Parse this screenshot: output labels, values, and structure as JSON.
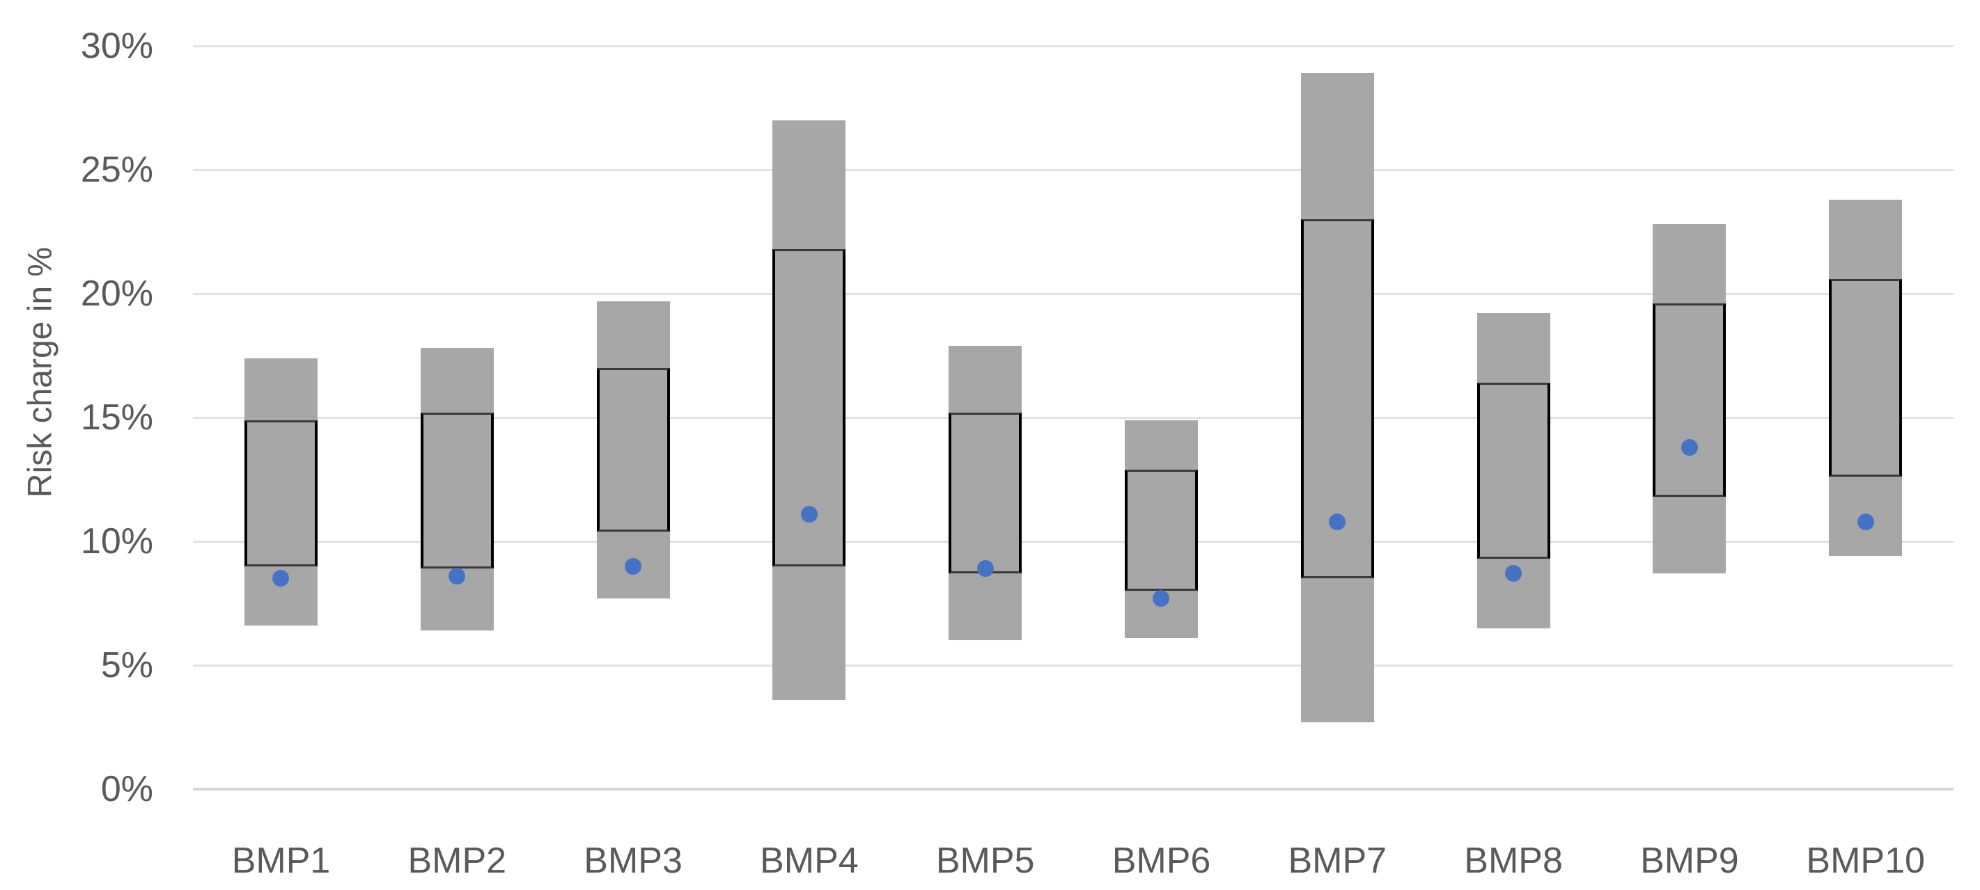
{
  "chart_data": {
    "type": "bar",
    "subtype": "floating-range-bars-with-box-outline-and-point-markers",
    "title": "",
    "xlabel": "",
    "ylabel": "Risk charge in %",
    "categories": [
      "BMP1",
      "BMP2",
      "BMP3",
      "BMP4",
      "BMP5",
      "BMP6",
      "BMP7",
      "BMP8",
      "BMP9",
      "BMP10"
    ],
    "series": [
      {
        "name": "full-range-gray-bar",
        "role": "range",
        "low": [
          6.6,
          6.4,
          7.7,
          3.6,
          6.0,
          6.1,
          2.7,
          6.5,
          8.7,
          9.4
        ],
        "high": [
          17.4,
          17.8,
          19.7,
          27.0,
          17.9,
          14.9,
          28.9,
          19.2,
          22.8,
          23.8
        ]
      },
      {
        "name": "inner-box-black-outline",
        "role": "box",
        "low": [
          9.0,
          8.9,
          10.4,
          9.0,
          8.7,
          8.0,
          8.5,
          9.3,
          11.8,
          12.6
        ],
        "high": [
          14.9,
          15.2,
          17.0,
          21.8,
          15.2,
          12.9,
          23.0,
          16.4,
          19.6,
          20.6
        ]
      },
      {
        "name": "point-marker-blue-dot",
        "role": "dot",
        "values": [
          8.5,
          8.6,
          9.0,
          11.1,
          8.9,
          7.7,
          10.8,
          8.7,
          13.8,
          10.8
        ]
      }
    ],
    "ylim": [
      0,
      30
    ],
    "yticks": [
      0,
      5,
      10,
      15,
      20,
      25,
      30
    ],
    "ytick_labels": [
      "0%",
      "5%",
      "10%",
      "15%",
      "20%",
      "25%",
      "30%"
    ],
    "grid": true,
    "legend": false,
    "colors": {
      "bar": "#a7a7a7",
      "box_border": "#000000",
      "box_border_horizontal": "#3a3a3a",
      "dot": "#4472c4",
      "gridline": "#e2e2e2",
      "axis_line": "#d5d5d5",
      "text": "#595959"
    }
  }
}
